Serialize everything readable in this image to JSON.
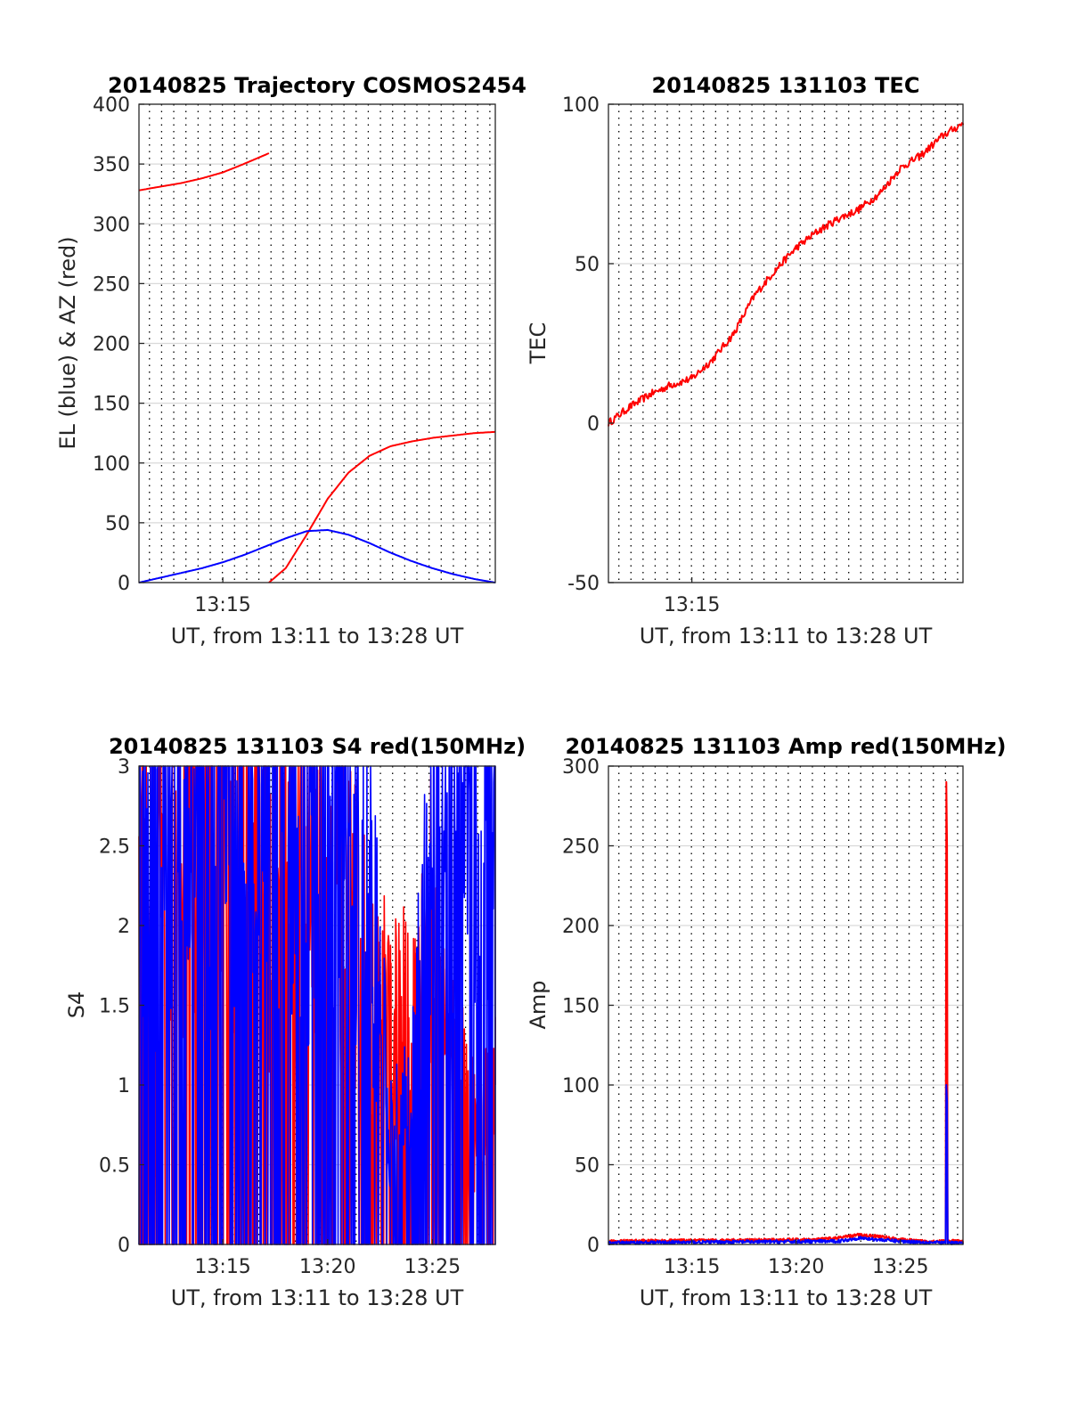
{
  "figure": {
    "background": "#ffffff",
    "colors": {
      "el_series": "#0000ff",
      "az_series": "#ff0000",
      "grid_major": "#d9d9d9",
      "grid_vertical": "#000000"
    }
  },
  "chart_data": [
    {
      "id": "trajectory",
      "type": "line",
      "title": "20140825 Trajectory COSMOS2454",
      "xlabel": "UT, from 13:11 to 13:28 UT",
      "ylabel": "EL (blue) & AZ (red)",
      "xlim": [
        "13:11",
        "13:28"
      ],
      "ylim": [
        0,
        400
      ],
      "xticks": [
        "13:15"
      ],
      "yticks": [
        "0",
        "50",
        "100",
        "150",
        "200",
        "250",
        "300",
        "350",
        "400"
      ],
      "grid": "horizontal solid, vertical dotted",
      "series": [
        {
          "color": "#ff0000",
          "x": [
            "13:11",
            "13:12",
            "13:13",
            "13:14",
            "13:15",
            "13:16",
            "13:17:12"
          ],
          "y": [
            328,
            331,
            334,
            338,
            343,
            350,
            359
          ]
        },
        {
          "color": "#ff0000",
          "x": [
            "13:17:12",
            "13:18",
            "13:19",
            "13:20",
            "13:21",
            "13:22",
            "13:23",
            "13:24",
            "13:25",
            "13:26",
            "13:27",
            "13:28"
          ],
          "y": [
            0,
            12,
            40,
            70,
            92,
            106,
            114,
            118,
            121,
            123,
            125,
            126
          ]
        },
        {
          "color": "#0000ff",
          "x": [
            "13:11",
            "13:12",
            "13:13",
            "13:14",
            "13:15",
            "13:16",
            "13:17",
            "13:18",
            "13:19",
            "13:20",
            "13:21",
            "13:22",
            "13:23",
            "13:24",
            "13:25",
            "13:26",
            "13:27",
            "13:28"
          ],
          "y": [
            0,
            4,
            8,
            12,
            17,
            23,
            30,
            37,
            43,
            44,
            40,
            33,
            25,
            18,
            12,
            7,
            3,
            0
          ]
        }
      ]
    },
    {
      "id": "tec",
      "type": "line",
      "title": "20140825 131103 TEC",
      "xlabel": "UT, from 13:11 to 13:28 UT",
      "ylabel": "TEC",
      "xlim": [
        "13:11",
        "13:28"
      ],
      "ylim": [
        -50,
        100
      ],
      "xticks": [
        "13:15"
      ],
      "yticks": [
        "-50",
        "0",
        "50",
        "100"
      ],
      "grid": "horizontal solid, vertical dotted",
      "series": [
        {
          "color": "#ff0000",
          "x": [
            "13:11",
            "13:12",
            "13:13",
            "13:14",
            "13:15",
            "13:16",
            "13:17",
            "13:18",
            "13:19",
            "13:20",
            "13:21",
            "13:22",
            "13:23",
            "13:24",
            "13:25",
            "13:26",
            "13:27",
            "13:28"
          ],
          "y": [
            0,
            5,
            9,
            12,
            14,
            20,
            28,
            40,
            48,
            55,
            60,
            64,
            67,
            72,
            80,
            84,
            90,
            94
          ]
        }
      ]
    },
    {
      "id": "s4",
      "type": "line",
      "title": "20140825 131103 S4 red(150MHz)",
      "xlabel": "UT, from 13:11 to 13:28 UT",
      "ylabel": "S4",
      "xlim": [
        "13:11",
        "13:28"
      ],
      "ylim": [
        0,
        3
      ],
      "xticks": [
        "13:15",
        "13:20",
        "13:25"
      ],
      "yticks": [
        "0",
        "0.5",
        "1",
        "1.5",
        "2",
        "2.5",
        "3"
      ],
      "grid": "horizontal solid, vertical dotted",
      "series": [
        {
          "color": "#ff0000",
          "x": [
            "13:11",
            "13:12",
            "13:13",
            "13:14",
            "13:15",
            "13:16",
            "13:17",
            "13:18",
            "13:19",
            "13:20",
            "13:21",
            "13:22",
            "13:23",
            "13:24",
            "13:25",
            "13:26",
            "13:27",
            "13:28"
          ],
          "y": [
            3,
            3,
            2.8,
            3,
            3,
            3,
            2.5,
            3,
            2.9,
            2.3,
            2.2,
            1.6,
            1.4,
            1.5,
            2.0,
            1.2,
            0.8,
            1.0
          ]
        },
        {
          "color": "#0000ff",
          "x": [
            "13:11",
            "13:12",
            "13:13",
            "13:14",
            "13:15",
            "13:16",
            "13:17",
            "13:18",
            "13:19",
            "13:20",
            "13:21",
            "13:22",
            "13:23",
            "13:24",
            "13:25",
            "13:26",
            "13:27",
            "13:28"
          ],
          "y": [
            3,
            3,
            3,
            3,
            3,
            3,
            3,
            3,
            3,
            3,
            3,
            2.3,
            0.8,
            0.9,
            3,
            3,
            3,
            3
          ]
        }
      ]
    },
    {
      "id": "amp",
      "type": "line",
      "title": "20140825 131103 Amp red(150MHz)",
      "xlabel": "UT, from 13:11 to 13:28 UT",
      "ylabel": "Amp",
      "xlim": [
        "13:11",
        "13:28"
      ],
      "ylim": [
        0,
        300
      ],
      "xticks": [
        "13:15",
        "13:20",
        "13:25"
      ],
      "yticks": [
        "0",
        "50",
        "100",
        "150",
        "200",
        "250",
        "300"
      ],
      "grid": "horizontal solid, vertical dotted",
      "series": [
        {
          "color": "#ff0000",
          "x": [
            "13:11",
            "13:21",
            "13:22",
            "13:23",
            "13:24",
            "13:25",
            "13:26",
            "13:27:10",
            "13:27:12",
            "13:27:14",
            "13:27:16",
            "13:28"
          ],
          "y": [
            2,
            3,
            4,
            6,
            5,
            3,
            2,
            2,
            290,
            250,
            2,
            2
          ]
        },
        {
          "color": "#0000ff",
          "x": [
            "13:11",
            "13:22",
            "13:23",
            "13:24",
            "13:25",
            "13:27:10",
            "13:27:12",
            "13:27:14",
            "13:27:16",
            "13:28"
          ],
          "y": [
            1,
            2,
            4,
            3,
            2,
            1,
            100,
            90,
            1,
            1
          ]
        }
      ]
    }
  ]
}
